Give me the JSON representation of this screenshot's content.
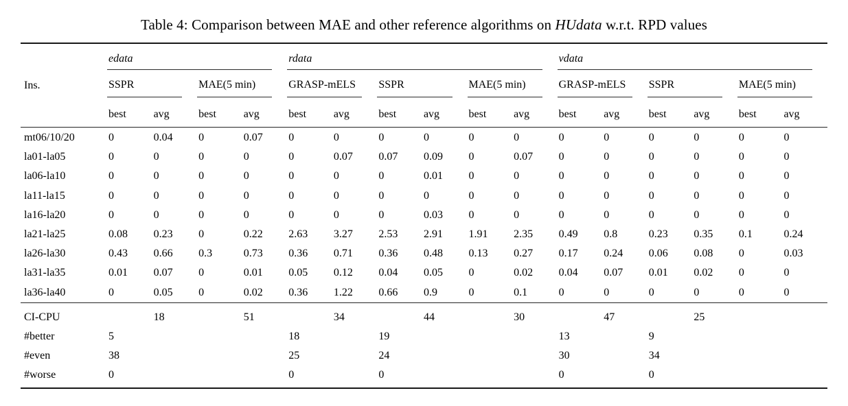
{
  "title": {
    "prefix": "Table 4: Comparison between MAE and other reference algorithms on ",
    "emph": "HUdata",
    "suffix": " w.r.t. RPD values"
  },
  "colors": {
    "text": "#000000",
    "rule": "#1a1a1a",
    "background": "#ffffff"
  },
  "table": {
    "ins_label": "Ins.",
    "groups": [
      {
        "label": "edata",
        "algorithms": [
          {
            "label": "SSPR"
          },
          {
            "label": "MAE(5 min)"
          }
        ]
      },
      {
        "label": "rdata",
        "algorithms": [
          {
            "label": "GRASP-mELS"
          },
          {
            "label": "SSPR"
          },
          {
            "label": "MAE(5 min)"
          }
        ]
      },
      {
        "label": "vdata",
        "algorithms": [
          {
            "label": "GRASP-mELS"
          },
          {
            "label": "SSPR"
          },
          {
            "label": "MAE(5 min)"
          }
        ]
      }
    ],
    "subheaders": [
      "best",
      "avg"
    ],
    "rows": [
      {
        "ins": "mt06/10/20",
        "values": [
          "0",
          "0.04",
          "0",
          "0.07",
          "0",
          "0",
          "0",
          "0",
          "0",
          "0",
          "0",
          "0",
          "0",
          "0",
          "0",
          "0"
        ]
      },
      {
        "ins": "la01-la05",
        "values": [
          "0",
          "0",
          "0",
          "0",
          "0",
          "0.07",
          "0.07",
          "0.09",
          "0",
          "0.07",
          "0",
          "0",
          "0",
          "0",
          "0",
          "0"
        ]
      },
      {
        "ins": "la06-la10",
        "values": [
          "0",
          "0",
          "0",
          "0",
          "0",
          "0",
          "0",
          "0.01",
          "0",
          "0",
          "0",
          "0",
          "0",
          "0",
          "0",
          "0"
        ]
      },
      {
        "ins": "la11-la15",
        "values": [
          "0",
          "0",
          "0",
          "0",
          "0",
          "0",
          "0",
          "0",
          "0",
          "0",
          "0",
          "0",
          "0",
          "0",
          "0",
          "0"
        ]
      },
      {
        "ins": "la16-la20",
        "values": [
          "0",
          "0",
          "0",
          "0",
          "0",
          "0",
          "0",
          "0.03",
          "0",
          "0",
          "0",
          "0",
          "0",
          "0",
          "0",
          "0"
        ]
      },
      {
        "ins": "la21-la25",
        "values": [
          "0.08",
          "0.23",
          "0",
          "0.22",
          "2.63",
          "3.27",
          "2.53",
          "2.91",
          "1.91",
          "2.35",
          "0.49",
          "0.8",
          "0.23",
          "0.35",
          "0.1",
          "0.24"
        ]
      },
      {
        "ins": "la26-la30",
        "values": [
          "0.43",
          "0.66",
          "0.3",
          "0.73",
          "0.36",
          "0.71",
          "0.36",
          "0.48",
          "0.13",
          "0.27",
          "0.17",
          "0.24",
          "0.06",
          "0.08",
          "0",
          "0.03"
        ]
      },
      {
        "ins": "la31-la35",
        "values": [
          "0.01",
          "0.07",
          "0",
          "0.01",
          "0.05",
          "0.12",
          "0.04",
          "0.05",
          "0",
          "0.02",
          "0.04",
          "0.07",
          "0.01",
          "0.02",
          "0",
          "0"
        ]
      },
      {
        "ins": "la36-la40",
        "values": [
          "0",
          "0.05",
          "0",
          "0.02",
          "0.36",
          "1.22",
          "0.66",
          "0.9",
          "0",
          "0.1",
          "0",
          "0",
          "0",
          "0",
          "0",
          "0"
        ]
      }
    ],
    "summary_rows": [
      {
        "ins": "CI-CPU",
        "values": [
          "",
          "18",
          "",
          "51",
          "",
          "34",
          "",
          "44",
          "",
          "30",
          "",
          "47",
          "",
          "25",
          "",
          ""
        ]
      },
      {
        "ins": "#better",
        "values": [
          "5",
          "",
          "",
          "",
          "18",
          "",
          "19",
          "",
          "",
          "",
          "13",
          "",
          "9",
          "",
          "",
          ""
        ]
      },
      {
        "ins": "#even",
        "values": [
          "38",
          "",
          "",
          "",
          "25",
          "",
          "24",
          "",
          "",
          "",
          "30",
          "",
          "34",
          "",
          "",
          ""
        ]
      },
      {
        "ins": "#worse",
        "values": [
          "0",
          "",
          "",
          "",
          "0",
          "",
          "0",
          "",
          "",
          "",
          "0",
          "",
          "0",
          "",
          "",
          ""
        ]
      }
    ]
  }
}
